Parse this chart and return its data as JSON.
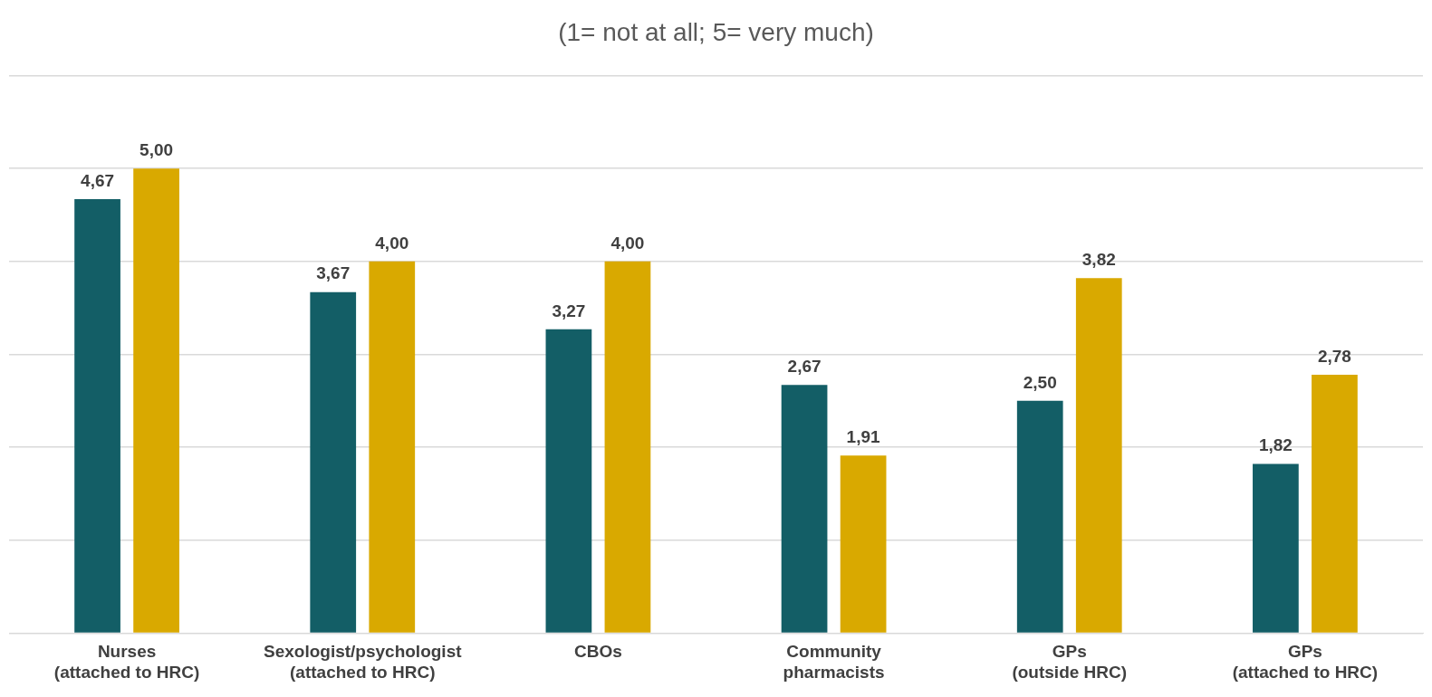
{
  "chart_data": {
    "type": "bar",
    "title": "(1= not at all; 5= very much)",
    "categories": [
      "Nurses\n(attached to HRC)",
      "Sexologist/psychologist\n(attached to HRC)",
      "CBOs",
      "Community\npharmacists",
      "GPs\n(outside HRC)",
      "GPs\n(attached to HRC)"
    ],
    "series": [
      {
        "color": "#135e66",
        "values": [
          4.67,
          3.67,
          3.27,
          2.67,
          2.5,
          1.82
        ],
        "value_labels": [
          "4,67",
          "3,67",
          "3,27",
          "2,67",
          "2,50",
          "1,82"
        ]
      },
      {
        "color": "#d9a900",
        "values": [
          5,
          4,
          4,
          1.91,
          3.82,
          2.78
        ],
        "value_labels": [
          "5,00",
          "4,00",
          "4,00",
          "1,91",
          "3,82",
          "2,78"
        ]
      }
    ],
    "ylim": [
      0,
      6
    ],
    "yticks": [
      {
        "value": 0,
        "label": null
      },
      {
        "value": 1,
        "label": null
      },
      {
        "value": 2,
        "label": null
      },
      {
        "value": 3,
        "label": null
      },
      {
        "value": 4,
        "label": null
      },
      {
        "value": 5,
        "label": null
      },
      {
        "value": 6,
        "label": null
      }
    ],
    "tick_labels": "x",
    "grid": "y",
    "legend": false
  }
}
